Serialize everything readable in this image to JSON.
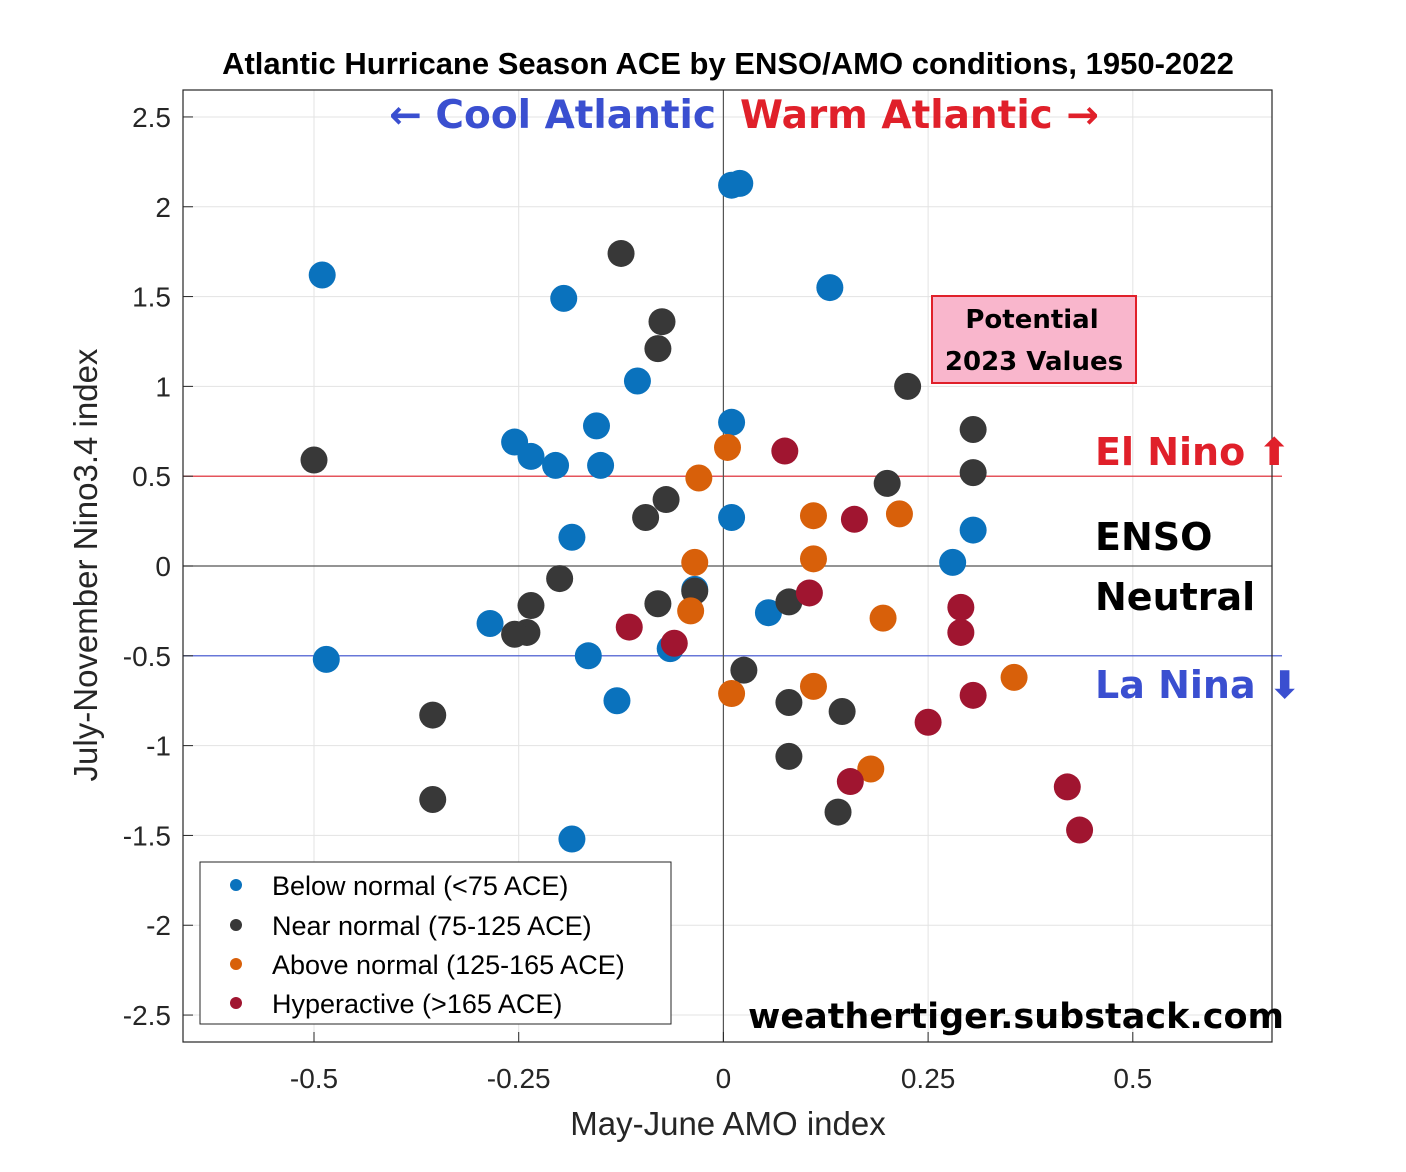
{
  "chart_data": {
    "type": "scatter",
    "title": "Atlantic Hurricane Season ACE by ENSO/AMO conditions, 1950-2022",
    "xlabel": "May-June AMO index",
    "ylabel": "July-November Nino3.4 index",
    "xlim": [
      -0.66,
      0.67
    ],
    "ylim": [
      -2.65,
      2.65
    ],
    "xticks": [
      -0.5,
      -0.25,
      0,
      0.25,
      0.5
    ],
    "xtick_labels": [
      "-0.5",
      "-0.25",
      "0",
      "0.25",
      "0.5"
    ],
    "yticks": [
      2.5,
      2,
      1.5,
      1,
      0.5,
      0,
      -0.5,
      -1,
      -1.5,
      -2,
      -2.5
    ],
    "ytick_labels": [
      "2.5",
      "2",
      "1.5",
      "1",
      "0.5",
      "0",
      "-0.5",
      "-1",
      "-1.5",
      "-2",
      "-2.5"
    ],
    "grid": true,
    "reference_lines": [
      {
        "name": "el-nino-threshold",
        "y": 0.5,
        "color": "#e0202a"
      },
      {
        "name": "la-nina-threshold",
        "y": -0.5,
        "color": "#3a4fd0"
      },
      {
        "name": "zero-y",
        "y": 0,
        "color": "#555555"
      },
      {
        "name": "zero-x",
        "x": 0,
        "color": "#555555"
      }
    ],
    "annotations": {
      "cool_atlantic": "← Cool Atlantic",
      "warm_atlantic": "Warm Atlantic →",
      "el_nino": "El Nino ⬆",
      "enso_neutral_line1": "ENSO",
      "enso_neutral_line2": "Neutral",
      "la_nina": "La Nina ⬇",
      "potential_line1": "Potential",
      "potential_line2": "2023 Values",
      "watermark": "weathertiger.substack.com"
    },
    "legend_position": "bottom-left",
    "series": [
      {
        "name": "Below normal (<75 ACE)",
        "color": "#0a72bd",
        "points": [
          [
            -0.49,
            1.62
          ],
          [
            -0.195,
            1.49
          ],
          [
            -0.105,
            1.03
          ],
          [
            0.01,
            2.12
          ],
          [
            0.02,
            2.13
          ],
          [
            0.13,
            1.55
          ],
          [
            0.01,
            0.8
          ],
          [
            -0.155,
            0.78
          ],
          [
            -0.255,
            0.69
          ],
          [
            -0.235,
            0.61
          ],
          [
            -0.205,
            0.56
          ],
          [
            -0.15,
            0.56
          ],
          [
            0.01,
            0.27
          ],
          [
            -0.185,
            0.16
          ],
          [
            0.305,
            0.2
          ],
          [
            0.28,
            0.02
          ],
          [
            -0.035,
            -0.13
          ],
          [
            0.055,
            -0.26
          ],
          [
            -0.285,
            -0.32
          ],
          [
            -0.065,
            -0.46
          ],
          [
            -0.165,
            -0.5
          ],
          [
            -0.485,
            -0.52
          ],
          [
            -0.13,
            -0.75
          ],
          [
            -0.185,
            -1.52
          ]
        ]
      },
      {
        "name": "Near normal (75-125 ACE)",
        "color": "#383838",
        "points": [
          [
            -0.125,
            1.74
          ],
          [
            -0.075,
            1.36
          ],
          [
            -0.08,
            1.21
          ],
          [
            0.225,
            1.0
          ],
          [
            0.305,
            0.76
          ],
          [
            -0.5,
            0.59
          ],
          [
            0.305,
            0.52
          ],
          [
            0.2,
            0.46
          ],
          [
            -0.07,
            0.37
          ],
          [
            -0.095,
            0.27
          ],
          [
            -0.2,
            -0.07
          ],
          [
            -0.035,
            -0.14
          ],
          [
            -0.08,
            -0.21
          ],
          [
            -0.235,
            -0.22
          ],
          [
            0.08,
            -0.2
          ],
          [
            -0.24,
            -0.37
          ],
          [
            -0.255,
            -0.38
          ],
          [
            0.025,
            -0.58
          ],
          [
            0.08,
            -0.76
          ],
          [
            0.145,
            -0.81
          ],
          [
            -0.355,
            -0.83
          ],
          [
            0.08,
            -1.06
          ],
          [
            -0.355,
            -1.3
          ],
          [
            0.14,
            -1.37
          ]
        ]
      },
      {
        "name": "Above normal (125-165 ACE)",
        "color": "#d8600a",
        "points": [
          [
            0.005,
            0.66
          ],
          [
            -0.03,
            0.49
          ],
          [
            0.11,
            0.28
          ],
          [
            0.215,
            0.29
          ],
          [
            -0.035,
            0.02
          ],
          [
            0.11,
            0.04
          ],
          [
            -0.04,
            -0.25
          ],
          [
            0.195,
            -0.29
          ],
          [
            0.355,
            -0.62
          ],
          [
            0.01,
            -0.71
          ],
          [
            0.11,
            -0.67
          ],
          [
            0.18,
            -1.13
          ]
        ]
      },
      {
        "name": "Hyperactive (>165 ACE)",
        "color": "#a01530",
        "points": [
          [
            0.075,
            0.64
          ],
          [
            0.16,
            0.26
          ],
          [
            0.105,
            -0.15
          ],
          [
            0.29,
            -0.23
          ],
          [
            -0.115,
            -0.34
          ],
          [
            -0.06,
            -0.43
          ],
          [
            0.29,
            -0.37
          ],
          [
            0.305,
            -0.72
          ],
          [
            0.25,
            -0.87
          ],
          [
            0.155,
            -1.2
          ],
          [
            0.42,
            -1.23
          ],
          [
            0.435,
            -1.47
          ]
        ]
      }
    ]
  }
}
